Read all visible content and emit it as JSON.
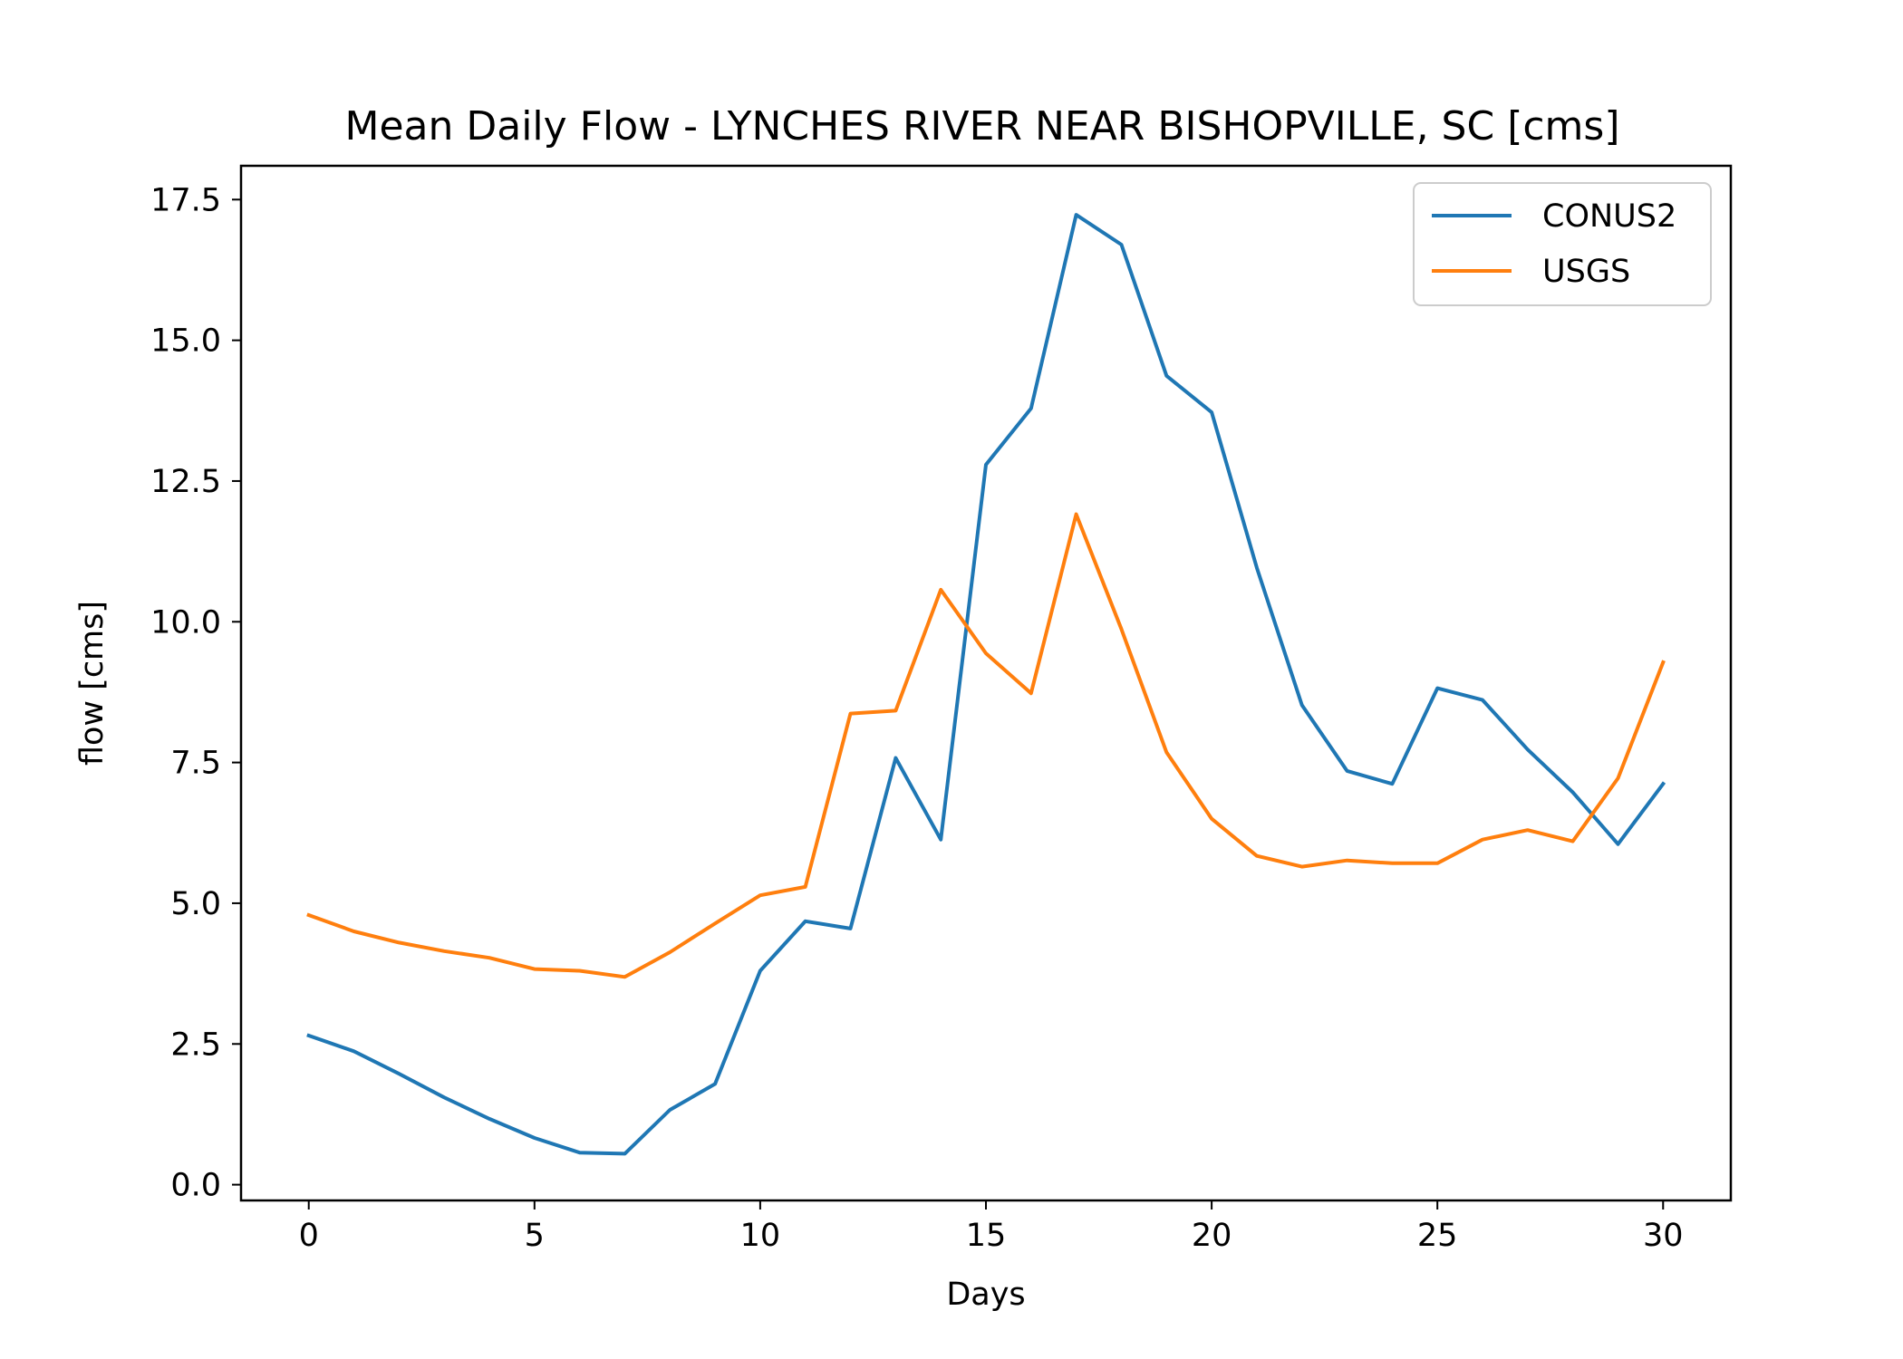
{
  "chart_data": {
    "type": "line",
    "title": "Mean Daily Flow - LYNCHES RIVER NEAR BISHOPVILLE, SC [cms]",
    "xlabel": "Days",
    "ylabel": "flow [cms]",
    "xlim": [
      -1.5,
      31.5
    ],
    "ylim": [
      -0.28,
      18.1
    ],
    "xticks": [
      0,
      5,
      10,
      15,
      20,
      25,
      30
    ],
    "yticks": [
      0.0,
      2.5,
      5.0,
      7.5,
      10.0,
      12.5,
      15.0,
      17.5
    ],
    "xtick_labels": [
      "0",
      "5",
      "10",
      "15",
      "20",
      "25",
      "30"
    ],
    "ytick_labels": [
      "0.0",
      "2.5",
      "5.0",
      "7.5",
      "10.0",
      "12.5",
      "15.0",
      "17.5"
    ],
    "grid": false,
    "legend_position": "top-right",
    "x": [
      0,
      1,
      2,
      3,
      4,
      5,
      6,
      7,
      8,
      9,
      10,
      11,
      12,
      13,
      14,
      15,
      16,
      17,
      18,
      19,
      20,
      21,
      22,
      23,
      24,
      25,
      26,
      27,
      28,
      29,
      30
    ],
    "series": [
      {
        "name": "CONUS2",
        "color": "#1f77b4",
        "values": [
          2.65,
          2.37,
          1.97,
          1.55,
          1.17,
          0.83,
          0.57,
          0.55,
          1.33,
          1.79,
          3.8,
          4.68,
          4.55,
          7.58,
          6.13,
          12.79,
          13.79,
          17.23,
          16.7,
          14.37,
          13.72,
          10.96,
          8.52,
          7.35,
          7.12,
          8.82,
          8.61,
          7.73,
          6.97,
          6.05,
          7.12
        ]
      },
      {
        "name": "USGS",
        "color": "#ff7f0e",
        "values": [
          4.79,
          4.5,
          4.3,
          4.15,
          4.03,
          3.83,
          3.8,
          3.69,
          4.13,
          4.64,
          5.14,
          5.29,
          8.37,
          8.42,
          10.57,
          9.44,
          8.73,
          11.91,
          9.87,
          7.68,
          6.5,
          5.84,
          5.65,
          5.76,
          5.71,
          5.71,
          6.13,
          6.3,
          6.1,
          7.22,
          9.28
        ]
      }
    ]
  }
}
